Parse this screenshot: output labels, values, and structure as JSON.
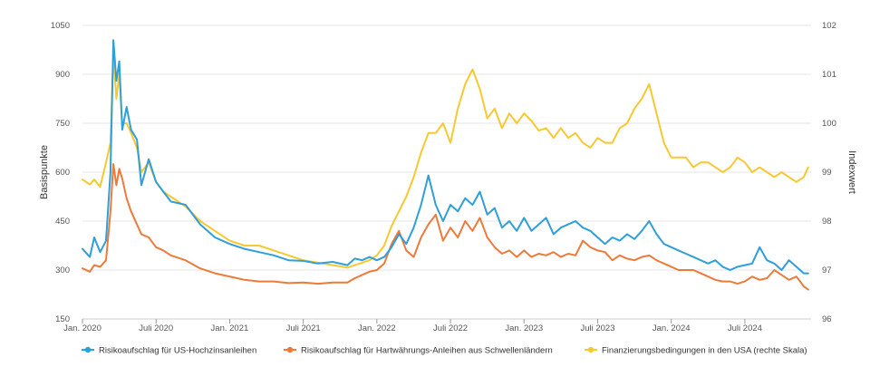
{
  "chart_data": {
    "type": "line",
    "ylabel_left": "Basispunkte",
    "ylabel_right": "Indexwert",
    "y_left_ticks": [
      "1050",
      "900",
      "750",
      "600",
      "450",
      "300",
      "150"
    ],
    "y_right_ticks": [
      "102",
      "101",
      "100",
      "99",
      "98",
      "97",
      "96"
    ],
    "ylim_left": [
      150,
      1050
    ],
    "ylim_right": [
      96,
      102
    ],
    "x_ticks": [
      "Jan. 2020",
      "Juli 2020",
      "Jan. 2021",
      "Juli 2021",
      "Jan. 2022",
      "Juli 2022",
      "Jan. 2023",
      "Juli 2023",
      "Jan. 2024",
      "Juli 2024"
    ],
    "x_range": [
      2020.0,
      2024.95
    ],
    "grid": "horizontal",
    "legend_position": "bottom",
    "series": [
      {
        "name": "Risikoaufschlag für US-Hochzinsanleihen",
        "color": "#2e9fd8",
        "axis": "left",
        "x": [
          2020.0,
          2020.05,
          2020.08,
          2020.12,
          2020.16,
          2020.19,
          2020.21,
          2020.23,
          2020.25,
          2020.27,
          2020.3,
          2020.33,
          2020.37,
          2020.4,
          2020.45,
          2020.5,
          2020.55,
          2020.6,
          2020.7,
          2020.8,
          2020.9,
          2021.0,
          2021.1,
          2021.2,
          2021.3,
          2021.4,
          2021.5,
          2021.6,
          2021.7,
          2021.8,
          2021.85,
          2021.9,
          2021.95,
          2022.0,
          2022.05,
          2022.1,
          2022.15,
          2022.2,
          2022.25,
          2022.3,
          2022.35,
          2022.4,
          2022.45,
          2022.5,
          2022.55,
          2022.6,
          2022.65,
          2022.7,
          2022.75,
          2022.8,
          2022.85,
          2022.9,
          2022.95,
          2023.0,
          2023.05,
          2023.1,
          2023.15,
          2023.2,
          2023.25,
          2023.3,
          2023.35,
          2023.4,
          2023.45,
          2023.5,
          2023.55,
          2023.6,
          2023.65,
          2023.7,
          2023.75,
          2023.8,
          2023.85,
          2023.9,
          2023.95,
          2024.0,
          2024.05,
          2024.1,
          2024.15,
          2024.2,
          2024.25,
          2024.3,
          2024.35,
          2024.4,
          2024.45,
          2024.5,
          2024.55,
          2024.6,
          2024.65,
          2024.7,
          2024.75,
          2024.8,
          2024.85,
          2024.9,
          2024.93
        ],
        "y": [
          365,
          340,
          400,
          355,
          390,
          600,
          1005,
          880,
          940,
          730,
          800,
          730,
          700,
          560,
          640,
          570,
          540,
          510,
          500,
          440,
          400,
          380,
          365,
          355,
          345,
          330,
          328,
          320,
          325,
          315,
          335,
          330,
          340,
          330,
          340,
          370,
          410,
          380,
          430,
          500,
          590,
          500,
          450,
          500,
          480,
          520,
          500,
          540,
          470,
          490,
          430,
          450,
          420,
          460,
          420,
          440,
          460,
          410,
          430,
          440,
          450,
          430,
          420,
          400,
          380,
          400,
          390,
          410,
          395,
          420,
          450,
          410,
          380,
          370,
          360,
          350,
          340,
          330,
          320,
          330,
          310,
          300,
          310,
          315,
          320,
          370,
          330,
          320,
          300,
          330,
          310,
          290,
          290
        ]
      },
      {
        "name": "Risikoaufschlag für Hartwährungs-Anleihen aus Schwellenländern",
        "color": "#ee7a3a",
        "axis": "left",
        "x": [
          2020.0,
          2020.05,
          2020.08,
          2020.12,
          2020.16,
          2020.19,
          2020.21,
          2020.23,
          2020.25,
          2020.27,
          2020.3,
          2020.33,
          2020.37,
          2020.4,
          2020.45,
          2020.5,
          2020.55,
          2020.6,
          2020.7,
          2020.8,
          2020.9,
          2021.0,
          2021.1,
          2021.2,
          2021.3,
          2021.4,
          2021.5,
          2021.6,
          2021.7,
          2021.8,
          2021.85,
          2021.9,
          2021.95,
          2022.0,
          2022.05,
          2022.1,
          2022.15,
          2022.2,
          2022.25,
          2022.3,
          2022.35,
          2022.4,
          2022.45,
          2022.5,
          2022.55,
          2022.6,
          2022.65,
          2022.7,
          2022.75,
          2022.8,
          2022.85,
          2022.9,
          2022.95,
          2023.0,
          2023.05,
          2023.1,
          2023.15,
          2023.2,
          2023.25,
          2023.3,
          2023.35,
          2023.4,
          2023.45,
          2023.5,
          2023.55,
          2023.6,
          2023.65,
          2023.7,
          2023.75,
          2023.8,
          2023.85,
          2023.9,
          2023.95,
          2024.0,
          2024.05,
          2024.1,
          2024.15,
          2024.2,
          2024.25,
          2024.3,
          2024.35,
          2024.4,
          2024.45,
          2024.5,
          2024.55,
          2024.6,
          2024.65,
          2024.7,
          2024.75,
          2024.8,
          2024.85,
          2024.9,
          2024.93
        ],
        "y": [
          305,
          295,
          315,
          310,
          330,
          480,
          625,
          560,
          610,
          580,
          520,
          480,
          440,
          410,
          400,
          370,
          360,
          345,
          330,
          305,
          290,
          280,
          270,
          265,
          265,
          260,
          262,
          258,
          262,
          262,
          275,
          285,
          295,
          300,
          320,
          380,
          420,
          360,
          340,
          400,
          440,
          470,
          390,
          430,
          400,
          450,
          420,
          460,
          400,
          370,
          350,
          360,
          340,
          360,
          340,
          350,
          345,
          355,
          340,
          350,
          345,
          390,
          370,
          360,
          355,
          330,
          345,
          335,
          330,
          340,
          345,
          330,
          320,
          310,
          300,
          300,
          300,
          290,
          280,
          270,
          265,
          265,
          258,
          265,
          280,
          270,
          275,
          300,
          285,
          270,
          280,
          250,
          240
        ]
      },
      {
        "name": "Finanzierungsbedingungen in den USA (rechte Skala)",
        "color": "#f7c831",
        "axis": "right",
        "x": [
          2020.0,
          2020.05,
          2020.08,
          2020.12,
          2020.16,
          2020.19,
          2020.21,
          2020.23,
          2020.25,
          2020.27,
          2020.3,
          2020.33,
          2020.37,
          2020.4,
          2020.45,
          2020.5,
          2020.55,
          2020.6,
          2020.7,
          2020.8,
          2020.9,
          2021.0,
          2021.1,
          2021.2,
          2021.3,
          2021.4,
          2021.5,
          2021.6,
          2021.7,
          2021.8,
          2021.85,
          2021.9,
          2021.95,
          2022.0,
          2022.05,
          2022.1,
          2022.15,
          2022.2,
          2022.25,
          2022.3,
          2022.35,
          2022.4,
          2022.45,
          2022.5,
          2022.55,
          2022.6,
          2022.65,
          2022.7,
          2022.75,
          2022.8,
          2022.85,
          2022.9,
          2022.95,
          2023.0,
          2023.05,
          2023.1,
          2023.15,
          2023.2,
          2023.25,
          2023.3,
          2023.35,
          2023.4,
          2023.45,
          2023.5,
          2023.55,
          2023.6,
          2023.65,
          2023.7,
          2023.75,
          2023.8,
          2023.85,
          2023.9,
          2023.95,
          2024.0,
          2024.05,
          2024.1,
          2024.15,
          2024.2,
          2024.25,
          2024.3,
          2024.35,
          2024.4,
          2024.45,
          2024.5,
          2024.55,
          2024.6,
          2024.65,
          2024.7,
          2024.75,
          2024.8,
          2024.85,
          2024.9,
          2024.93
        ],
        "y": [
          98.85,
          98.75,
          98.85,
          98.7,
          99.2,
          99.6,
          101.4,
          100.5,
          101.0,
          100.0,
          100.0,
          99.8,
          99.5,
          99.0,
          99.2,
          98.8,
          98.6,
          98.5,
          98.3,
          98.0,
          97.8,
          97.6,
          97.5,
          97.5,
          97.4,
          97.3,
          97.2,
          97.15,
          97.1,
          97.05,
          97.1,
          97.15,
          97.2,
          97.3,
          97.5,
          97.9,
          98.2,
          98.5,
          98.9,
          99.4,
          99.8,
          99.8,
          100.0,
          99.6,
          100.3,
          100.8,
          101.1,
          100.7,
          100.1,
          100.3,
          99.9,
          100.2,
          100.0,
          100.2,
          100.05,
          99.85,
          99.9,
          99.7,
          99.9,
          99.7,
          99.8,
          99.6,
          99.5,
          99.7,
          99.6,
          99.6,
          99.9,
          100.0,
          100.3,
          100.5,
          100.8,
          100.2,
          99.6,
          99.3,
          99.3,
          99.3,
          99.1,
          99.2,
          99.2,
          99.1,
          99.0,
          99.1,
          99.3,
          99.2,
          99.0,
          99.1,
          99.0,
          98.9,
          99.0,
          98.9,
          98.8,
          98.9,
          99.1
        ]
      }
    ]
  }
}
